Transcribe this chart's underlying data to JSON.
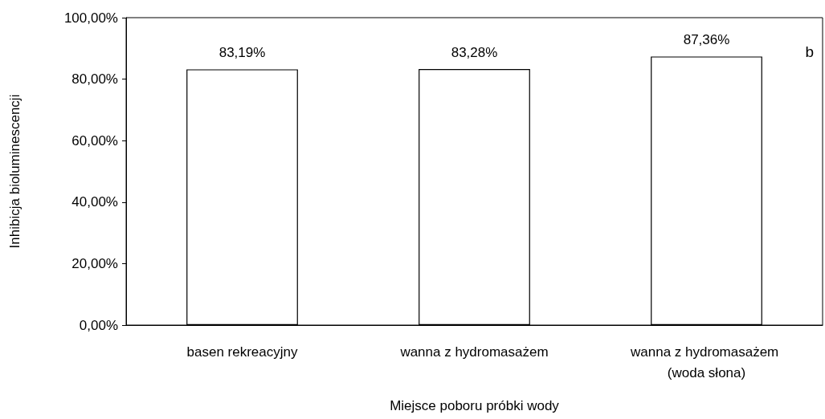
{
  "chart_data": {
    "type": "bar",
    "xlabel": "Miejsce poboru próbki wody",
    "ylabel": "Inhibicja bioluminescencji",
    "categories": [
      "basen rekreacyjny",
      "wanna z hydromasażem",
      "wanna z hydromasażem (woda słona)"
    ],
    "values": [
      83.19,
      83.28,
      87.36
    ],
    "color": "#ffffff",
    "value_labels": [
      "83,19%",
      "83,28%",
      "87,36%"
    ],
    "ylim": [
      0,
      100
    ],
    "yticks": [
      {
        "value": 0,
        "label": "0,00%"
      },
      {
        "value": 20,
        "label": "20,00%"
      },
      {
        "value": 40,
        "label": "40,00%"
      },
      {
        "value": 60,
        "label": "60,00%"
      },
      {
        "value": 80,
        "label": "80,00%"
      },
      {
        "value": 100,
        "label": "100,00%"
      }
    ],
    "grid": false,
    "annotations": [
      "b"
    ]
  }
}
